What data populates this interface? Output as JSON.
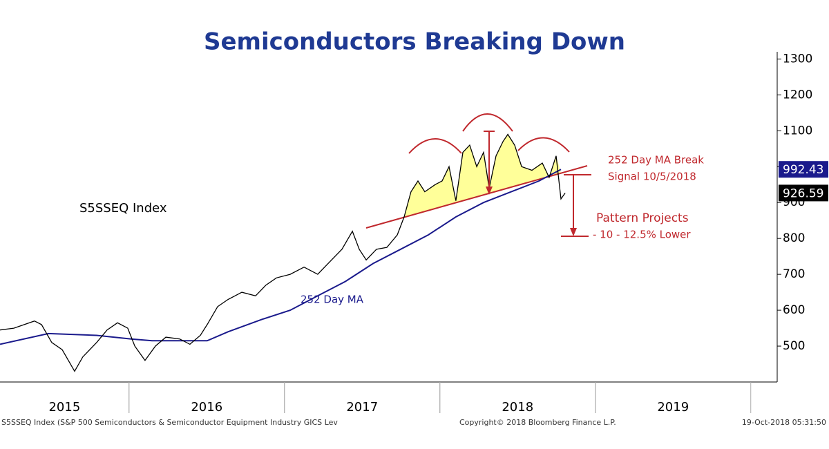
{
  "chart_data": {
    "type": "line",
    "title": "Semiconductors Breaking Down",
    "index_label": "S5SSEQ Index",
    "annotations": {
      "ma_label": "252 Day MA",
      "break_1": "252 Day MA Break",
      "break_2": "Signal 10/5/2018",
      "projection_1": "Pattern Projects",
      "projection_2": "- 10 - 12.5% Lower"
    },
    "footer": {
      "source": "S5SSEQ Index (S&P 500 Semiconductors & Semiconductor Equipment Industry GICS Lev",
      "copyright": "Copyright© 2018 Bloomberg Finance L.P.",
      "timestamp": "19-Oct-2018 05:31:50"
    },
    "xlim": [
      2015.17,
      2020.17
    ],
    "xticks": [
      {
        "value": 2015,
        "label": "2015"
      },
      {
        "value": 2016,
        "label": "2016"
      },
      {
        "value": 2017,
        "label": "2017"
      },
      {
        "value": 2018,
        "label": "2018"
      },
      {
        "value": 2019,
        "label": "2019"
      }
    ],
    "ylim": [
      400,
      1320
    ],
    "yticks": [
      500,
      600,
      700,
      800,
      900,
      1000,
      1100,
      1200,
      1300
    ],
    "series": [
      {
        "color": "#000000",
        "x": [
          2015.17,
          2015.259,
          2015.392,
          2015.437,
          2015.503,
          2015.57,
          2015.65,
          2015.703,
          2015.792,
          2015.859,
          2015.926,
          2015.992,
          2016.037,
          2016.103,
          2016.17,
          2016.237,
          2016.326,
          2016.392,
          2016.459,
          2016.503,
          2016.57,
          2016.637,
          2016.726,
          2016.814,
          2016.881,
          2016.948,
          2017.037,
          2017.126,
          2017.214,
          2017.303,
          2017.37,
          2017.437,
          2017.481,
          2017.526,
          2017.592,
          2017.659,
          2017.726,
          2017.77,
          2017.814,
          2017.859,
          2017.903,
          2017.97,
          2018.014,
          2018.059,
          2018.103,
          2018.148,
          2018.192,
          2018.237,
          2018.281,
          2018.317,
          2018.361,
          2018.406,
          2018.437,
          2018.481,
          2018.526,
          2018.592,
          2018.659,
          2018.703,
          2018.748,
          2018.779,
          2018.806
        ],
        "values": [
          545,
          550,
          570,
          560,
          510,
          490,
          430,
          470,
          510,
          545,
          565,
          550,
          500,
          460,
          500,
          525,
          520,
          505,
          530,
          560,
          610,
          630,
          650,
          640,
          670,
          690,
          700,
          720,
          700,
          740,
          770,
          820,
          770,
          740,
          770,
          775,
          810,
          860,
          930,
          960,
          930,
          950,
          960,
          1000,
          905,
          1040,
          1060,
          1000,
          1040,
          940,
          1030,
          1070,
          1090,
          1060,
          1000,
          990,
          1010,
          970,
          1030,
          910,
          926.59
        ]
      },
      {
        "color": "#1a1a8c",
        "x": [
          2015.17,
          2015.481,
          2015.792,
          2016.014,
          2016.148,
          2016.503,
          2016.637,
          2016.859,
          2017.037,
          2017.214,
          2017.392,
          2017.57,
          2017.748,
          2017.926,
          2018.103,
          2018.281,
          2018.459,
          2018.637,
          2018.779
        ],
        "values": [
          505,
          535,
          530,
          520,
          515,
          515,
          540,
          575,
          600,
          640,
          680,
          730,
          770,
          810,
          860,
          900,
          930,
          960,
          992.43
        ]
      }
    ]
  }
}
